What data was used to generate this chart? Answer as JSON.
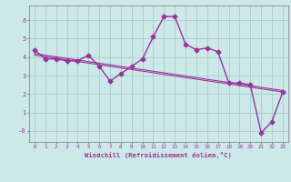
{
  "x": [
    0,
    1,
    2,
    3,
    4,
    5,
    6,
    7,
    8,
    9,
    10,
    11,
    12,
    13,
    14,
    15,
    16,
    17,
    18,
    19,
    20,
    21,
    22,
    23
  ],
  "y_main": [
    4.4,
    3.9,
    3.9,
    3.8,
    3.8,
    4.1,
    3.5,
    2.7,
    3.1,
    3.5,
    3.9,
    5.1,
    6.2,
    6.2,
    4.7,
    4.4,
    4.5,
    4.3,
    2.6,
    2.6,
    2.5,
    -0.1,
    0.5,
    2.1
  ],
  "trend_x": [
    0,
    23
  ],
  "trend_y": [
    4.15,
    2.15
  ],
  "line_color": "#993399",
  "bg_color": "#cce8e8",
  "grid_color": "#aacccc",
  "xlabel": "Windchill (Refroidissement éolien,°C)",
  "ytick_labels": [
    "-0",
    "1",
    "2",
    "3",
    "4",
    "5",
    "6"
  ],
  "ytick_vals": [
    0,
    1,
    2,
    3,
    4,
    5,
    6
  ],
  "ylim": [
    -0.6,
    6.8
  ],
  "xlim": [
    -0.5,
    23.5
  ],
  "marker": "D",
  "marker_size": 2.5,
  "linewidth": 1.0
}
